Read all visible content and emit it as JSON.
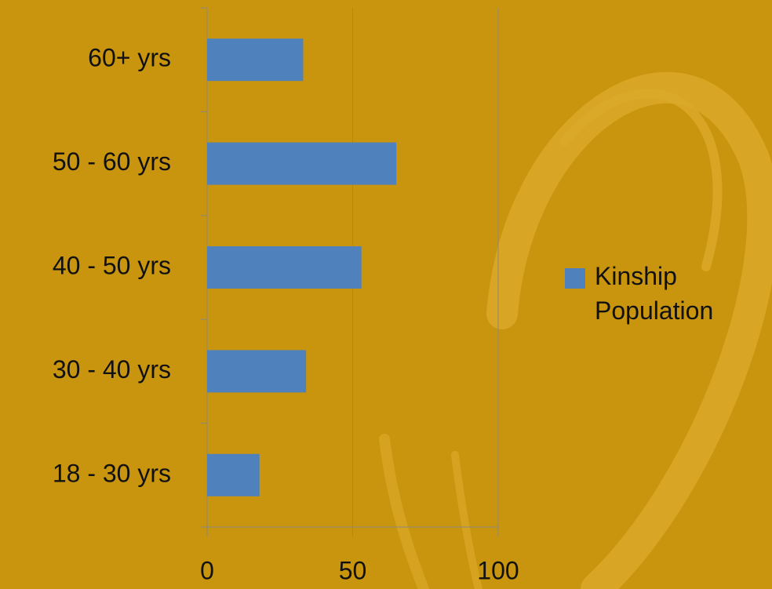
{
  "chart_data": {
    "type": "bar",
    "orientation": "horizontal",
    "categories": [
      "18 - 30 yrs",
      "30 - 40 yrs",
      "40 - 50 yrs",
      "50 - 60 yrs",
      "60+ yrs"
    ],
    "series": [
      {
        "name": "Kinship Population",
        "color": "#4f81bd",
        "values": [
          18,
          34,
          53,
          65,
          33
        ]
      }
    ],
    "xlim": [
      0,
      100
    ],
    "xticks": [
      0,
      50,
      100
    ],
    "grid": true,
    "legend": "right"
  }
}
